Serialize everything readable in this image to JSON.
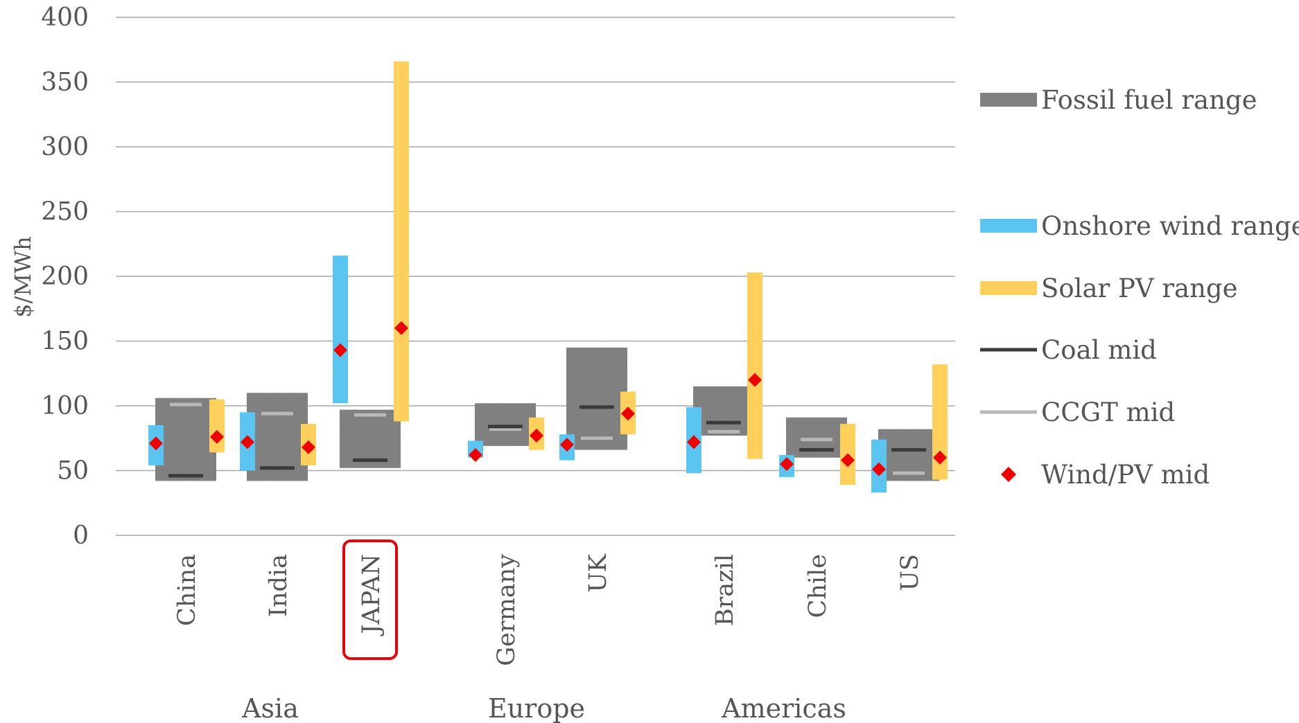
{
  "chart_data": {
    "type": "bar",
    "ylabel": "$/MWh",
    "xlabel": "",
    "ylim": [
      0,
      400
    ],
    "yticks": [
      "0",
      "50",
      "100",
      "150",
      "200",
      "250",
      "300",
      "350",
      "400"
    ],
    "grid": true,
    "legend_position": "right",
    "categories": [
      "China",
      "India",
      "JAPAN",
      "Germany",
      "UK",
      "Brazil",
      "Chile",
      "US"
    ],
    "highlighted_category": "JAPAN",
    "groups": [
      {
        "label": "Asia",
        "categories": [
          "China",
          "India",
          "JAPAN"
        ]
      },
      {
        "label": "Europe",
        "categories": [
          "Germany",
          "UK"
        ]
      },
      {
        "label": "Americas",
        "categories": [
          "Brazil",
          "Chile",
          "US"
        ]
      }
    ],
    "series": [
      {
        "name": "Fossil fuel range",
        "kind": "range",
        "color": "#7f7f7f",
        "low": [
          42,
          42,
          52,
          69,
          66,
          77,
          60,
          42
        ],
        "high": [
          106,
          110,
          97,
          102,
          145,
          115,
          91,
          82
        ]
      },
      {
        "name": "Onshore wind range",
        "kind": "range",
        "color": "#5bc4f1",
        "low": [
          54,
          50,
          102,
          60,
          58,
          48,
          45,
          33
        ],
        "high": [
          85,
          95,
          216,
          73,
          78,
          99,
          62,
          74
        ]
      },
      {
        "name": "Solar PV range",
        "kind": "range",
        "color": "#ffd15c",
        "low": [
          64,
          54,
          88,
          66,
          78,
          59,
          39,
          43
        ],
        "high": [
          105,
          86,
          366,
          91,
          111,
          203,
          86,
          132
        ]
      },
      {
        "name": "Coal mid",
        "kind": "marker-line",
        "color": "#3a3a3a",
        "values": [
          46,
          52,
          58,
          84,
          99,
          87,
          66,
          66
        ]
      },
      {
        "name": "CCGT mid",
        "kind": "marker-line",
        "color": "#b8b8b8",
        "values": [
          101,
          94,
          93,
          82,
          75,
          80,
          74,
          48
        ]
      },
      {
        "name": "Wind/PV mid",
        "kind": "diamond",
        "color": "#ee0000",
        "wind": [
          71,
          72,
          143,
          62,
          70,
          72,
          55,
          51
        ],
        "pv": [
          76,
          68,
          160,
          77,
          94,
          120,
          58,
          60
        ]
      }
    ]
  }
}
